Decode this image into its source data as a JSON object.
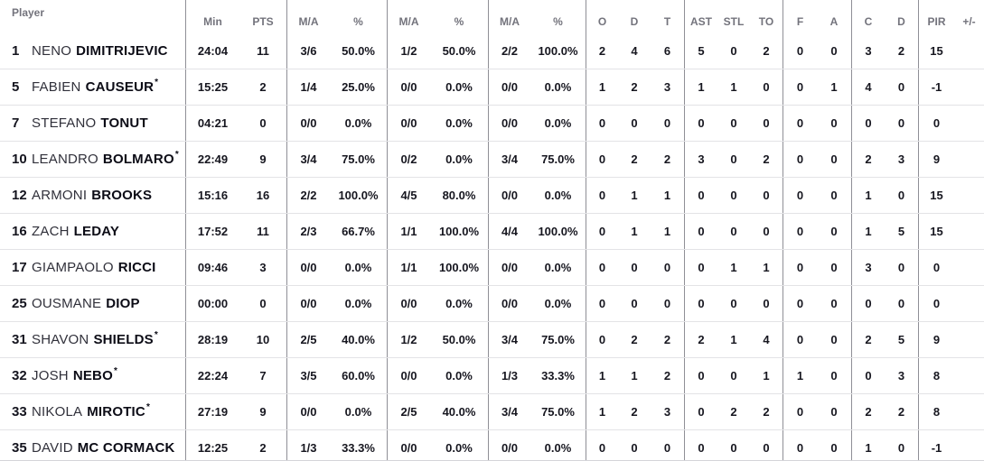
{
  "starter_mark": "*",
  "colors": {
    "header_text": "#73737c",
    "stat_text": "#16161f",
    "group_divider": "#8f8f96",
    "row_divider": "#e3e3e6"
  },
  "table": {
    "header": {
      "player": "Player",
      "columns": [
        "Min",
        "PTS",
        "M/A",
        "%",
        "M/A",
        "%",
        "M/A",
        "%",
        "O",
        "D",
        "T",
        "AST",
        "STL",
        "TO",
        "F",
        "A",
        "C",
        "D",
        "PIR",
        "+/-"
      ]
    },
    "rows": [
      {
        "number": "1",
        "first": "NENO",
        "last": "DIMITRIJEVIC",
        "starter": false,
        "stats": [
          "24:04",
          "11",
          "3/6",
          "50.0%",
          "1/2",
          "50.0%",
          "2/2",
          "100.0%",
          "2",
          "4",
          "6",
          "5",
          "0",
          "2",
          "0",
          "0",
          "3",
          "2",
          "15",
          ""
        ]
      },
      {
        "number": "5",
        "first": "FABIEN",
        "last": "CAUSEUR",
        "starter": true,
        "stats": [
          "15:25",
          "2",
          "1/4",
          "25.0%",
          "0/0",
          "0.0%",
          "0/0",
          "0.0%",
          "1",
          "2",
          "3",
          "1",
          "1",
          "0",
          "0",
          "1",
          "4",
          "0",
          "-1",
          ""
        ]
      },
      {
        "number": "7",
        "first": "STEFANO",
        "last": "TONUT",
        "starter": false,
        "stats": [
          "04:21",
          "0",
          "0/0",
          "0.0%",
          "0/0",
          "0.0%",
          "0/0",
          "0.0%",
          "0",
          "0",
          "0",
          "0",
          "0",
          "0",
          "0",
          "0",
          "0",
          "0",
          "0",
          ""
        ]
      },
      {
        "number": "10",
        "first": "LEANDRO",
        "last": "BOLMARO",
        "starter": true,
        "stats": [
          "22:49",
          "9",
          "3/4",
          "75.0%",
          "0/2",
          "0.0%",
          "3/4",
          "75.0%",
          "0",
          "2",
          "2",
          "3",
          "0",
          "2",
          "0",
          "0",
          "2",
          "3",
          "9",
          ""
        ]
      },
      {
        "number": "12",
        "first": "ARMONI",
        "last": "BROOKS",
        "starter": false,
        "stats": [
          "15:16",
          "16",
          "2/2",
          "100.0%",
          "4/5",
          "80.0%",
          "0/0",
          "0.0%",
          "0",
          "1",
          "1",
          "0",
          "0",
          "0",
          "0",
          "0",
          "1",
          "0",
          "15",
          ""
        ]
      },
      {
        "number": "16",
        "first": "ZACH",
        "last": "LEDAY",
        "starter": false,
        "stats": [
          "17:52",
          "11",
          "2/3",
          "66.7%",
          "1/1",
          "100.0%",
          "4/4",
          "100.0%",
          "0",
          "1",
          "1",
          "0",
          "0",
          "0",
          "0",
          "0",
          "1",
          "5",
          "15",
          ""
        ]
      },
      {
        "number": "17",
        "first": "GIAMPAOLO",
        "last": "RICCI",
        "starter": false,
        "stats": [
          "09:46",
          "3",
          "0/0",
          "0.0%",
          "1/1",
          "100.0%",
          "0/0",
          "0.0%",
          "0",
          "0",
          "0",
          "0",
          "1",
          "1",
          "0",
          "0",
          "3",
          "0",
          "0",
          ""
        ]
      },
      {
        "number": "25",
        "first": "OUSMANE",
        "last": "DIOP",
        "starter": false,
        "stats": [
          "00:00",
          "0",
          "0/0",
          "0.0%",
          "0/0",
          "0.0%",
          "0/0",
          "0.0%",
          "0",
          "0",
          "0",
          "0",
          "0",
          "0",
          "0",
          "0",
          "0",
          "0",
          "0",
          ""
        ]
      },
      {
        "number": "31",
        "first": "SHAVON",
        "last": "SHIELDS",
        "starter": true,
        "stats": [
          "28:19",
          "10",
          "2/5",
          "40.0%",
          "1/2",
          "50.0%",
          "3/4",
          "75.0%",
          "0",
          "2",
          "2",
          "2",
          "1",
          "4",
          "0",
          "0",
          "2",
          "5",
          "9",
          ""
        ]
      },
      {
        "number": "32",
        "first": "JOSH",
        "last": "NEBO",
        "starter": true,
        "stats": [
          "22:24",
          "7",
          "3/5",
          "60.0%",
          "0/0",
          "0.0%",
          "1/3",
          "33.3%",
          "1",
          "1",
          "2",
          "0",
          "0",
          "1",
          "1",
          "0",
          "0",
          "3",
          "8",
          ""
        ]
      },
      {
        "number": "33",
        "first": "NIKOLA",
        "last": "MIROTIC",
        "starter": true,
        "stats": [
          "27:19",
          "9",
          "0/0",
          "0.0%",
          "2/5",
          "40.0%",
          "3/4",
          "75.0%",
          "1",
          "2",
          "3",
          "0",
          "2",
          "2",
          "0",
          "0",
          "2",
          "2",
          "8",
          ""
        ]
      },
      {
        "number": "35",
        "first": "DAVID",
        "last": "MC CORMACK",
        "starter": false,
        "stats": [
          "12:25",
          "2",
          "1/3",
          "33.3%",
          "0/0",
          "0.0%",
          "0/0",
          "0.0%",
          "0",
          "0",
          "0",
          "0",
          "0",
          "0",
          "0",
          "0",
          "1",
          "0",
          "-1",
          ""
        ]
      }
    ]
  }
}
